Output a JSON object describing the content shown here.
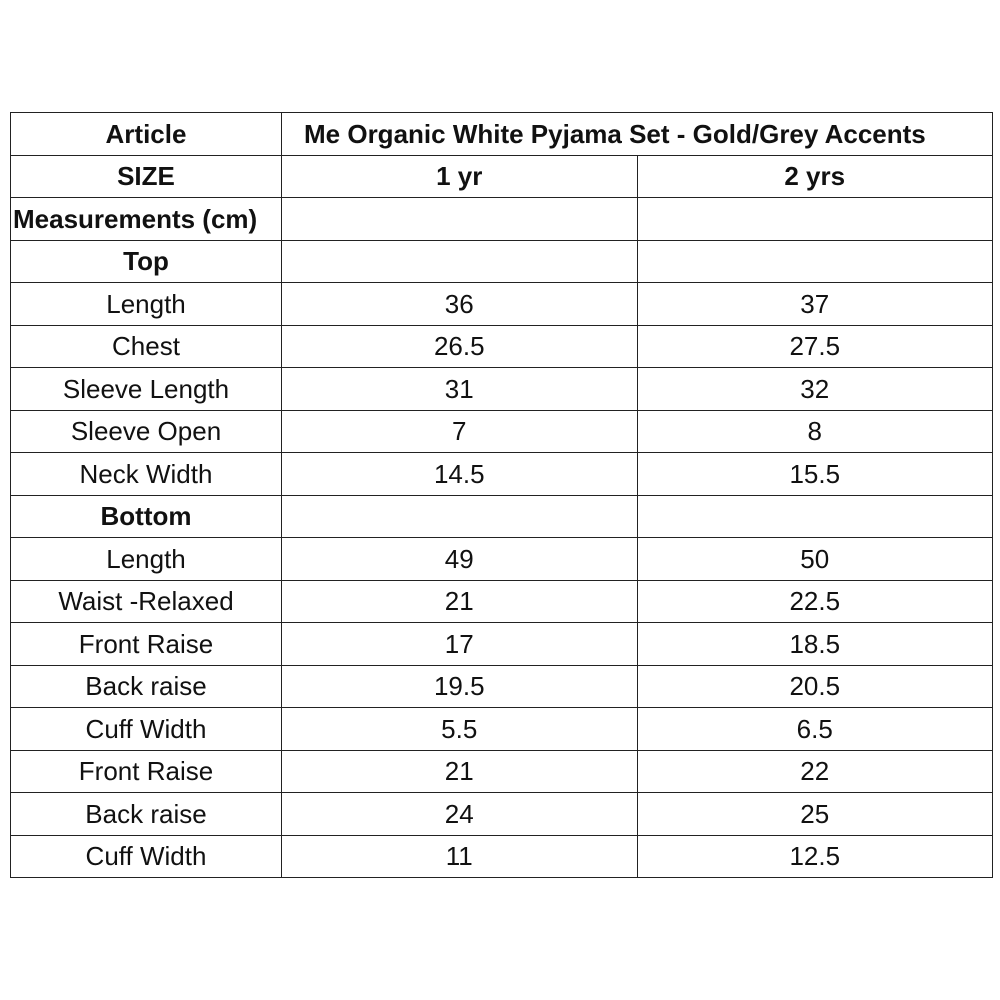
{
  "header": {
    "article_label": "Article",
    "article_name": "Me Organic White Pyjama Set - Gold/Grey Accents",
    "size_label": "SIZE",
    "sizes": [
      "1 yr",
      "2 yrs"
    ]
  },
  "measurements_label": "Measurements (cm)",
  "sections": [
    {
      "title": "Top",
      "rows": [
        {
          "label": "Length",
          "values": [
            "36",
            "37"
          ]
        },
        {
          "label": "Chest",
          "values": [
            "26.5",
            "27.5"
          ]
        },
        {
          "label": "Sleeve Length",
          "values": [
            "31",
            "32"
          ]
        },
        {
          "label": "Sleeve Open",
          "values": [
            "7",
            "8"
          ]
        },
        {
          "label": "Neck Width",
          "values": [
            "14.5",
            "15.5"
          ]
        }
      ]
    },
    {
      "title": "Bottom",
      "rows": [
        {
          "label": "Length",
          "values": [
            "49",
            "50"
          ]
        },
        {
          "label": "Waist -Relaxed",
          "values": [
            "21",
            "22.5"
          ]
        },
        {
          "label": "Front Raise",
          "values": [
            "17",
            "18.5"
          ]
        },
        {
          "label": "Back raise",
          "values": [
            "19.5",
            "20.5"
          ]
        },
        {
          "label": "Cuff Width",
          "values": [
            "5.5",
            "6.5"
          ]
        },
        {
          "label": "Front Raise",
          "values": [
            "21",
            "22"
          ]
        },
        {
          "label": "Back raise",
          "values": [
            "24",
            "25"
          ]
        },
        {
          "label": "Cuff Width",
          "values": [
            "11",
            "12.5"
          ]
        }
      ]
    }
  ]
}
